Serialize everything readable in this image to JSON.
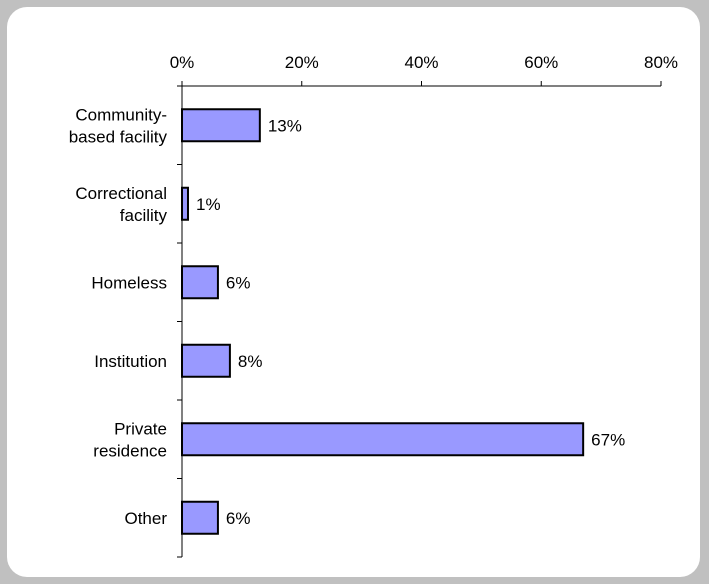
{
  "chart_data": {
    "type": "bar",
    "orientation": "horizontal",
    "categories": [
      [
        "Community-",
        "based facility"
      ],
      [
        "Correctional",
        "facility"
      ],
      [
        "Homeless"
      ],
      [
        "Institution"
      ],
      [
        "Private",
        "residence"
      ],
      [
        "Other"
      ]
    ],
    "values": [
      13,
      1,
      6,
      8,
      67,
      6
    ],
    "value_labels": [
      "13%",
      "1%",
      "6%",
      "8%",
      "67%",
      "6%"
    ],
    "xlim": [
      0,
      80
    ],
    "x_ticks": [
      0,
      20,
      40,
      60,
      80
    ],
    "x_tick_labels": [
      "0%",
      "20%",
      "40%",
      "60%",
      "80%"
    ],
    "x_axis_position": "top",
    "grid": false,
    "legend": "none",
    "colors": {
      "bar_fill": "#9999ff",
      "bar_stroke": "#000000",
      "axis": "#000000",
      "frame_bg": "#ffffff",
      "page_bg": "#c0c0c0"
    }
  }
}
